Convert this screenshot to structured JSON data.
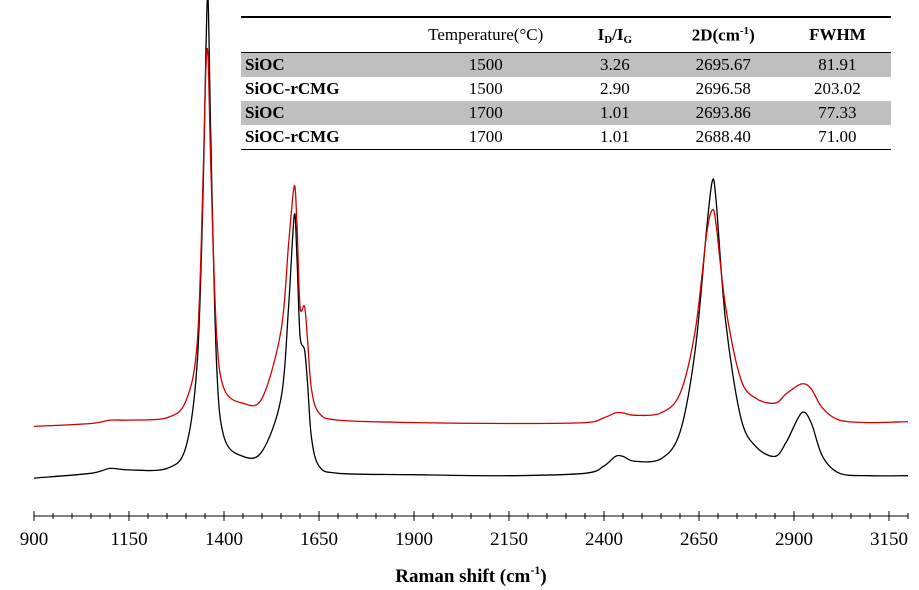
{
  "chart_data": {
    "type": "line",
    "xlabel": "Raman shift (cm",
    "xlabel_sup": "-1",
    "xlabel_close": ")",
    "xlim": [
      900,
      3200
    ],
    "xticks": [
      900,
      1150,
      1400,
      1650,
      1900,
      2150,
      2400,
      2650,
      2900,
      3150
    ],
    "minor_tick_step": 50,
    "grid": false,
    "legend": "none",
    "y_axis_visible": false,
    "ylim": [
      0,
      100
    ],
    "series": [
      {
        "color": "#000000",
        "offset": 3,
        "x": [
          900,
          1050,
          1100,
          1150,
          1250,
          1300,
          1330,
          1345,
          1352,
          1358,
          1365,
          1380,
          1400,
          1450,
          1500,
          1550,
          1570,
          1585,
          1592,
          1600,
          1612,
          1620,
          1630,
          1650,
          1700,
          1900,
          2150,
          2350,
          2400,
          2430,
          2450,
          2480,
          2550,
          2600,
          2640,
          2670,
          2685,
          2695,
          2720,
          2760,
          2800,
          2850,
          2880,
          2920,
          2945,
          2975,
          3020,
          3100,
          3200
        ],
        "y": [
          0.5,
          1.5,
          2.5,
          2.2,
          2.5,
          7,
          25,
          60,
          88,
          100,
          72,
          25,
          9,
          5,
          6,
          17,
          36,
          55,
          46,
          30,
          27,
          20,
          9,
          3,
          1.5,
          1.2,
          1.0,
          1.5,
          3,
          5,
          5,
          4,
          4.5,
          10,
          27,
          52,
          62,
          58,
          33,
          13,
          7,
          5,
          8,
          14,
          12,
          5,
          1.5,
          1.0,
          1.0
        ]
      },
      {
        "color": "#d00000",
        "offset": 14,
        "x": [
          900,
          1050,
          1100,
          1150,
          1250,
          1300,
          1330,
          1345,
          1352,
          1358,
          1365,
          1380,
          1400,
          1450,
          1500,
          1550,
          1570,
          1585,
          1592,
          1600,
          1612,
          1620,
          1630,
          1650,
          1700,
          1900,
          2150,
          2350,
          2400,
          2430,
          2450,
          2480,
          2550,
          2600,
          2640,
          2670,
          2685,
          2695,
          2720,
          2760,
          2800,
          2850,
          2880,
          2920,
          2945,
          2975,
          3020,
          3100,
          3200
        ],
        "y": [
          0.2,
          0.8,
          1.5,
          1.5,
          2,
          5.5,
          18,
          52,
          74,
          77,
          55,
          20,
          8,
          5,
          6,
          20,
          38,
          50,
          42,
          25,
          25,
          18,
          8,
          3,
          1.5,
          1.0,
          0.8,
          1.0,
          2,
          3,
          3,
          2.5,
          3,
          7,
          20,
          40,
          45,
          42,
          25,
          10,
          6,
          5,
          7,
          9,
          8,
          4,
          1.5,
          1.0,
          1.2
        ]
      }
    ],
    "table": {
      "headers": [
        "",
        "Temperature(°C)",
        "I_D/I_G",
        "2D(cm-1)",
        "FWHM"
      ],
      "rows": [
        {
          "sample": "SiOC",
          "temperature": "1500",
          "id_ig": "3.26",
          "d2": "2695.67",
          "fwhm": "81.91"
        },
        {
          "sample": "SiOC-rCMG",
          "temperature": "1500",
          "id_ig": "2.90",
          "d2": "2696.58",
          "fwhm": "203.02"
        },
        {
          "sample": "SiOC",
          "temperature": "1700",
          "id_ig": "1.01",
          "d2": "2693.86",
          "fwhm": "77.33"
        },
        {
          "sample": "SiOC-rCMG",
          "temperature": "1700",
          "id_ig": "1.01",
          "d2": "2688.40",
          "fwhm": "71.00"
        }
      ]
    }
  },
  "table_header": {
    "temperature": "Temperature(°C)",
    "id_ig_main": "I",
    "id_ig_sub1": "D",
    "id_ig_slash": "/I",
    "id_ig_sub2": "G",
    "d2_main": "2D(cm",
    "d2_sup": "-1",
    "d2_close": ")",
    "fwhm": "FWHM"
  }
}
